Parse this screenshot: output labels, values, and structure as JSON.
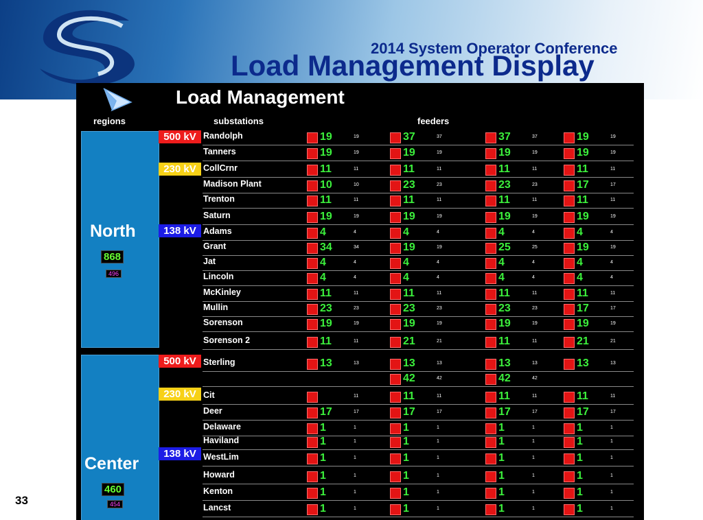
{
  "slide": {
    "conference": "2014 System Operator Conference",
    "title": "Load Management Display",
    "number": "33"
  },
  "panel": {
    "title": "Load Management",
    "headers": {
      "regions": "regions",
      "substations": "substations",
      "feeders": "feeders"
    }
  },
  "colors": {
    "kv500": "#ee1c1c",
    "kv230": "#f7d117",
    "kv138": "#1c1ce6",
    "region": "#1380c2",
    "feeder_value": "#3cf03c"
  },
  "regions": [
    {
      "name": "North",
      "total": "868",
      "subtotal": "496"
    },
    {
      "name": "Center",
      "total": "460",
      "subtotal": "454"
    }
  ],
  "kv_labels": [
    {
      "label": "500 kV",
      "class": "k500"
    },
    {
      "label": "230 kV",
      "class": "k230"
    },
    {
      "label": "138 kV",
      "class": "k138"
    },
    {
      "label": "500 kV",
      "class": "k500"
    },
    {
      "label": "230 kV",
      "class": "k230"
    },
    {
      "label": "138 kV",
      "class": "k138"
    }
  ],
  "rows": [
    {
      "sub": "Randolph",
      "f": [
        [
          "19",
          "19"
        ],
        [
          "37",
          "37"
        ],
        [
          "37",
          "37"
        ],
        [
          "19",
          "19"
        ]
      ]
    },
    {
      "sub": "Tanners",
      "f": [
        [
          "19",
          "19"
        ],
        [
          "19",
          "19"
        ],
        [
          "19",
          "19"
        ],
        [
          "19",
          "19"
        ]
      ]
    },
    {
      "sub": "CollCrnr",
      "f": [
        [
          "11",
          "11"
        ],
        [
          "11",
          "11"
        ],
        [
          "11",
          "11"
        ],
        [
          "11",
          "11"
        ]
      ]
    },
    {
      "sub": "Madison Plant",
      "f": [
        [
          "10",
          "10"
        ],
        [
          "23",
          "23"
        ],
        [
          "23",
          "23"
        ],
        [
          "17",
          "17"
        ]
      ]
    },
    {
      "sub": "Trenton",
      "f": [
        [
          "11",
          "11"
        ],
        [
          "11",
          "11"
        ],
        [
          "11",
          "11"
        ],
        [
          "11",
          "11"
        ]
      ]
    },
    {
      "sub": "Saturn",
      "f": [
        [
          "19",
          "19"
        ],
        [
          "19",
          "19"
        ],
        [
          "19",
          "19"
        ],
        [
          "19",
          "19"
        ]
      ]
    },
    {
      "sub": "Adams",
      "f": [
        [
          "4",
          "4"
        ],
        [
          "4",
          "4"
        ],
        [
          "4",
          "4"
        ],
        [
          "4",
          "4"
        ]
      ]
    },
    {
      "sub": "Grant",
      "f": [
        [
          "34",
          "34"
        ],
        [
          "19",
          "19"
        ],
        [
          "25",
          "25"
        ],
        [
          "19",
          "19"
        ]
      ]
    },
    {
      "sub": "Jat",
      "f": [
        [
          "4",
          "4"
        ],
        [
          "4",
          "4"
        ],
        [
          "4",
          "4"
        ],
        [
          "4",
          "4"
        ]
      ]
    },
    {
      "sub": "Lincoln",
      "f": [
        [
          "4",
          "4"
        ],
        [
          "4",
          "4"
        ],
        [
          "4",
          "4"
        ],
        [
          "4",
          "4"
        ]
      ]
    },
    {
      "sub": "McKinley",
      "f": [
        [
          "11",
          "11"
        ],
        [
          "11",
          "11"
        ],
        [
          "11",
          "11"
        ],
        [
          "11",
          "11"
        ]
      ]
    },
    {
      "sub": "Mullin",
      "f": [
        [
          "23",
          "23"
        ],
        [
          "23",
          "23"
        ],
        [
          "23",
          "23"
        ],
        [
          "17",
          "17"
        ]
      ]
    },
    {
      "sub": "Sorenson",
      "f": [
        [
          "19",
          "19"
        ],
        [
          "19",
          "19"
        ],
        [
          "19",
          "19"
        ],
        [
          "19",
          "19"
        ]
      ]
    },
    {
      "sub": "Sorenson 2",
      "f": [
        [
          "11",
          "11"
        ],
        [
          "21",
          "21"
        ],
        [
          "11",
          "11"
        ],
        [
          "21",
          "21"
        ]
      ]
    },
    {
      "sub": "Sterling",
      "f": [
        [
          "13",
          "13"
        ],
        [
          "13",
          "13"
        ],
        [
          "13",
          "13"
        ],
        [
          "13",
          "13"
        ]
      ]
    },
    {
      "sub": "",
      "f": [
        null,
        [
          "42",
          "42"
        ],
        [
          "42",
          "42"
        ],
        null
      ]
    },
    {
      "sub": "Cit",
      "f": [
        [
          "",
          "11"
        ],
        [
          "11",
          "11"
        ],
        [
          "11",
          "11"
        ],
        [
          "11",
          "11"
        ]
      ]
    },
    {
      "sub": "Deer",
      "f": [
        [
          "17",
          "17"
        ],
        [
          "17",
          "17"
        ],
        [
          "17",
          "17"
        ],
        [
          "17",
          "17"
        ]
      ]
    },
    {
      "sub": "Delaware",
      "f": [
        [
          "1",
          "1"
        ],
        [
          "1",
          "1"
        ],
        [
          "1",
          "1"
        ],
        [
          "1",
          "1"
        ]
      ]
    },
    {
      "sub": "Haviland",
      "f": [
        [
          "1",
          "1"
        ],
        [
          "1",
          "1"
        ],
        [
          "1",
          "1"
        ],
        [
          "1",
          "1"
        ]
      ]
    },
    {
      "sub": "WestLim",
      "f": [
        [
          "1",
          "1"
        ],
        [
          "1",
          "1"
        ],
        [
          "1",
          "1"
        ],
        [
          "1",
          "1"
        ]
      ]
    },
    {
      "sub": "Howard",
      "f": [
        [
          "1",
          "1"
        ],
        [
          "1",
          "1"
        ],
        [
          "1",
          "1"
        ],
        [
          "1",
          "1"
        ]
      ]
    },
    {
      "sub": "Kenton",
      "f": [
        [
          "1",
          "1"
        ],
        [
          "1",
          "1"
        ],
        [
          "1",
          "1"
        ],
        [
          "1",
          "1"
        ]
      ]
    },
    {
      "sub": "Lancst",
      "f": [
        [
          "1",
          "1"
        ],
        [
          "1",
          "1"
        ],
        [
          "1",
          "1"
        ],
        [
          "1",
          "1"
        ]
      ]
    }
  ]
}
